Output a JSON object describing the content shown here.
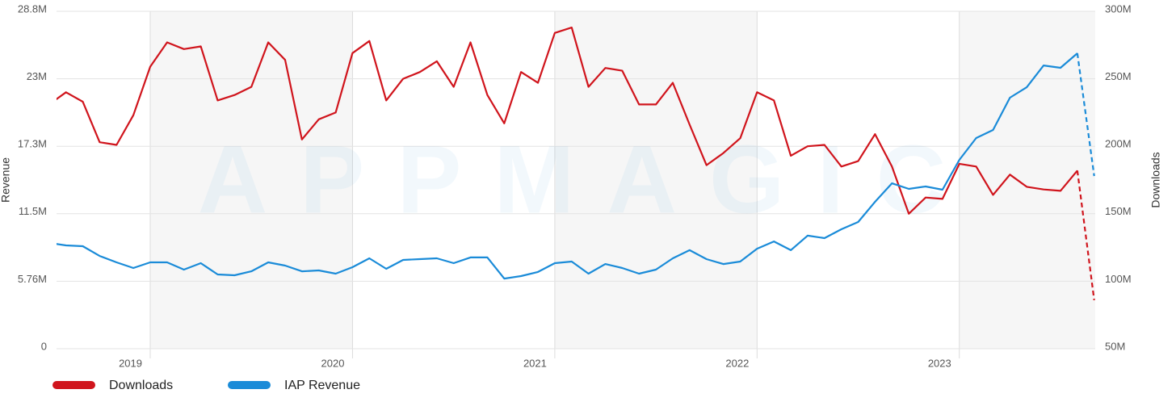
{
  "chart_data": {
    "type": "line",
    "watermark": "APPMAGIC",
    "y_label": "Revenue",
    "y2_label": "Downloads",
    "categories": [
      null,
      null,
      null,
      null,
      null,
      null,
      "2019",
      null,
      null,
      null,
      null,
      null,
      null,
      null,
      null,
      null,
      null,
      null,
      "2020",
      null,
      null,
      null,
      null,
      null,
      null,
      null,
      null,
      null,
      null,
      null,
      "2021",
      null,
      null,
      null,
      null,
      null,
      null,
      null,
      null,
      null,
      null,
      null,
      "2022",
      null,
      null,
      null,
      null,
      null,
      null,
      null,
      null,
      null,
      null,
      null,
      "2023",
      null,
      null,
      null,
      null,
      null,
      null,
      null,
      null
    ],
    "series": [
      {
        "name": "Downloads",
        "color": "#d0141c",
        "axis": "y2",
        "values": [
          231,
          240,
          233,
          203,
          201,
          223,
          259,
          277,
          272,
          274,
          234,
          238,
          244,
          277,
          264,
          205,
          220,
          225,
          269,
          278,
          234,
          250,
          255,
          263,
          244,
          277,
          238,
          217,
          255,
          247,
          284,
          288,
          244,
          258,
          256,
          231,
          231,
          247,
          216,
          186,
          195,
          206,
          240,
          234,
          193,
          200,
          201,
          185,
          189,
          209,
          185,
          150,
          162,
          161,
          187,
          185,
          164,
          179,
          170,
          168,
          167,
          182,
          86
        ]
      },
      {
        "name": "IAP Revenue",
        "color": "#1a8bd8",
        "values": [
          9.03,
          8.82,
          8.75,
          7.92,
          7.37,
          6.89,
          7.37,
          7.37,
          6.75,
          7.3,
          6.34,
          6.27,
          6.61,
          7.37,
          7.1,
          6.61,
          6.68,
          6.41,
          6.96,
          7.72,
          6.82,
          7.58,
          7.65,
          7.72,
          7.3,
          7.79,
          7.79,
          5.99,
          6.2,
          6.55,
          7.3,
          7.44,
          6.41,
          7.23,
          6.89,
          6.41,
          6.75,
          7.72,
          8.41,
          7.65,
          7.23,
          7.44,
          8.54,
          9.16,
          8.41,
          9.65,
          9.44,
          10.2,
          10.82,
          12.54,
          14.12,
          13.64,
          13.85,
          13.57,
          16.12,
          17.98,
          18.67,
          21.43,
          22.32,
          24.18,
          23.98,
          25.22,
          14.74
        ]
      }
    ],
    "ylim": [
      0,
      28.8
    ],
    "yticks": [
      0,
      {
        "value": 5.76,
        "label": "5.76M"
      },
      {
        "value": 11.52,
        "label": "11.5M"
      },
      {
        "value": 17.28,
        "label": "17.3M"
      },
      {
        "value": 23.04,
        "label": "23M"
      },
      {
        "value": 28.8,
        "label": "28.8M"
      }
    ],
    "y2lim": [
      50,
      300
    ],
    "y2ticks": [
      {
        "value": 50,
        "label": "50M"
      },
      {
        "value": 100,
        "label": "100M"
      },
      {
        "value": 150,
        "label": "150M"
      },
      {
        "value": 200,
        "label": "200M"
      },
      {
        "value": 250,
        "label": "250M"
      },
      {
        "value": 300,
        "label": "300M"
      }
    ],
    "grid": true,
    "legend": "bottom"
  }
}
